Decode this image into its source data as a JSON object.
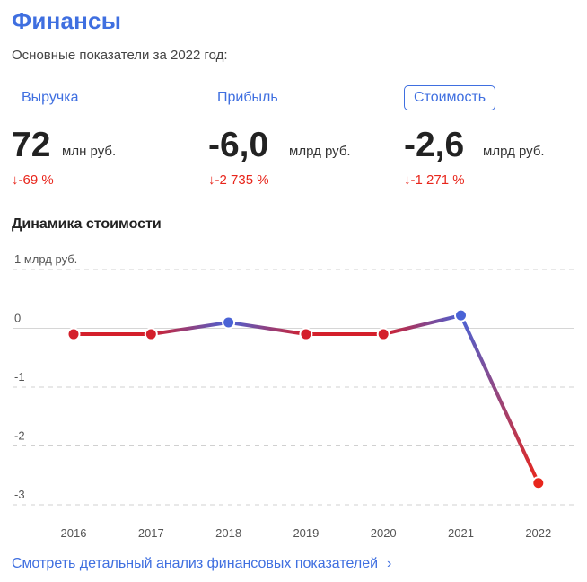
{
  "header": {
    "title": "Финансы",
    "subtitle": "Основные показатели за 2022 год:"
  },
  "tabs": [
    {
      "label": "Выручка",
      "active": false
    },
    {
      "label": "Прибыль",
      "active": false
    },
    {
      "label": "Стоимость",
      "active": true
    }
  ],
  "metrics": [
    {
      "value": "72",
      "unit": "млн руб.",
      "change": "↓-69 %"
    },
    {
      "value": "-6,0",
      "unit": "млрд руб.",
      "change": "↓-2 735 %"
    },
    {
      "value": "-2,6",
      "unit": "млрд руб.",
      "change": "↓-1 271 %"
    }
  ],
  "section_title": "Динамика стоимости",
  "footer_link": "Смотреть детальный анализ финансовых показателей",
  "colors": {
    "accent": "#3f6fe0",
    "negative": "#e8261c",
    "line_up": "#4a63d6",
    "line_down": "#d41f2b"
  },
  "chart_data": {
    "type": "line",
    "title": "Динамика стоимости",
    "y_unit_label": "1 млрд руб.",
    "x": [
      "2016",
      "2017",
      "2018",
      "2019",
      "2020",
      "2021",
      "2022"
    ],
    "values": [
      -0.1,
      -0.1,
      0.1,
      -0.1,
      -0.1,
      0.22,
      -2.63
    ],
    "yticks": [
      {
        "value": 1,
        "label": "1 млрд руб."
      },
      {
        "value": 0,
        "label": "0"
      },
      {
        "value": -1,
        "label": "-1"
      },
      {
        "value": -2,
        "label": "-2"
      },
      {
        "value": -3,
        "label": "-3"
      }
    ],
    "ylim": [
      -3,
      1
    ],
    "grid": true,
    "legend": "none"
  }
}
